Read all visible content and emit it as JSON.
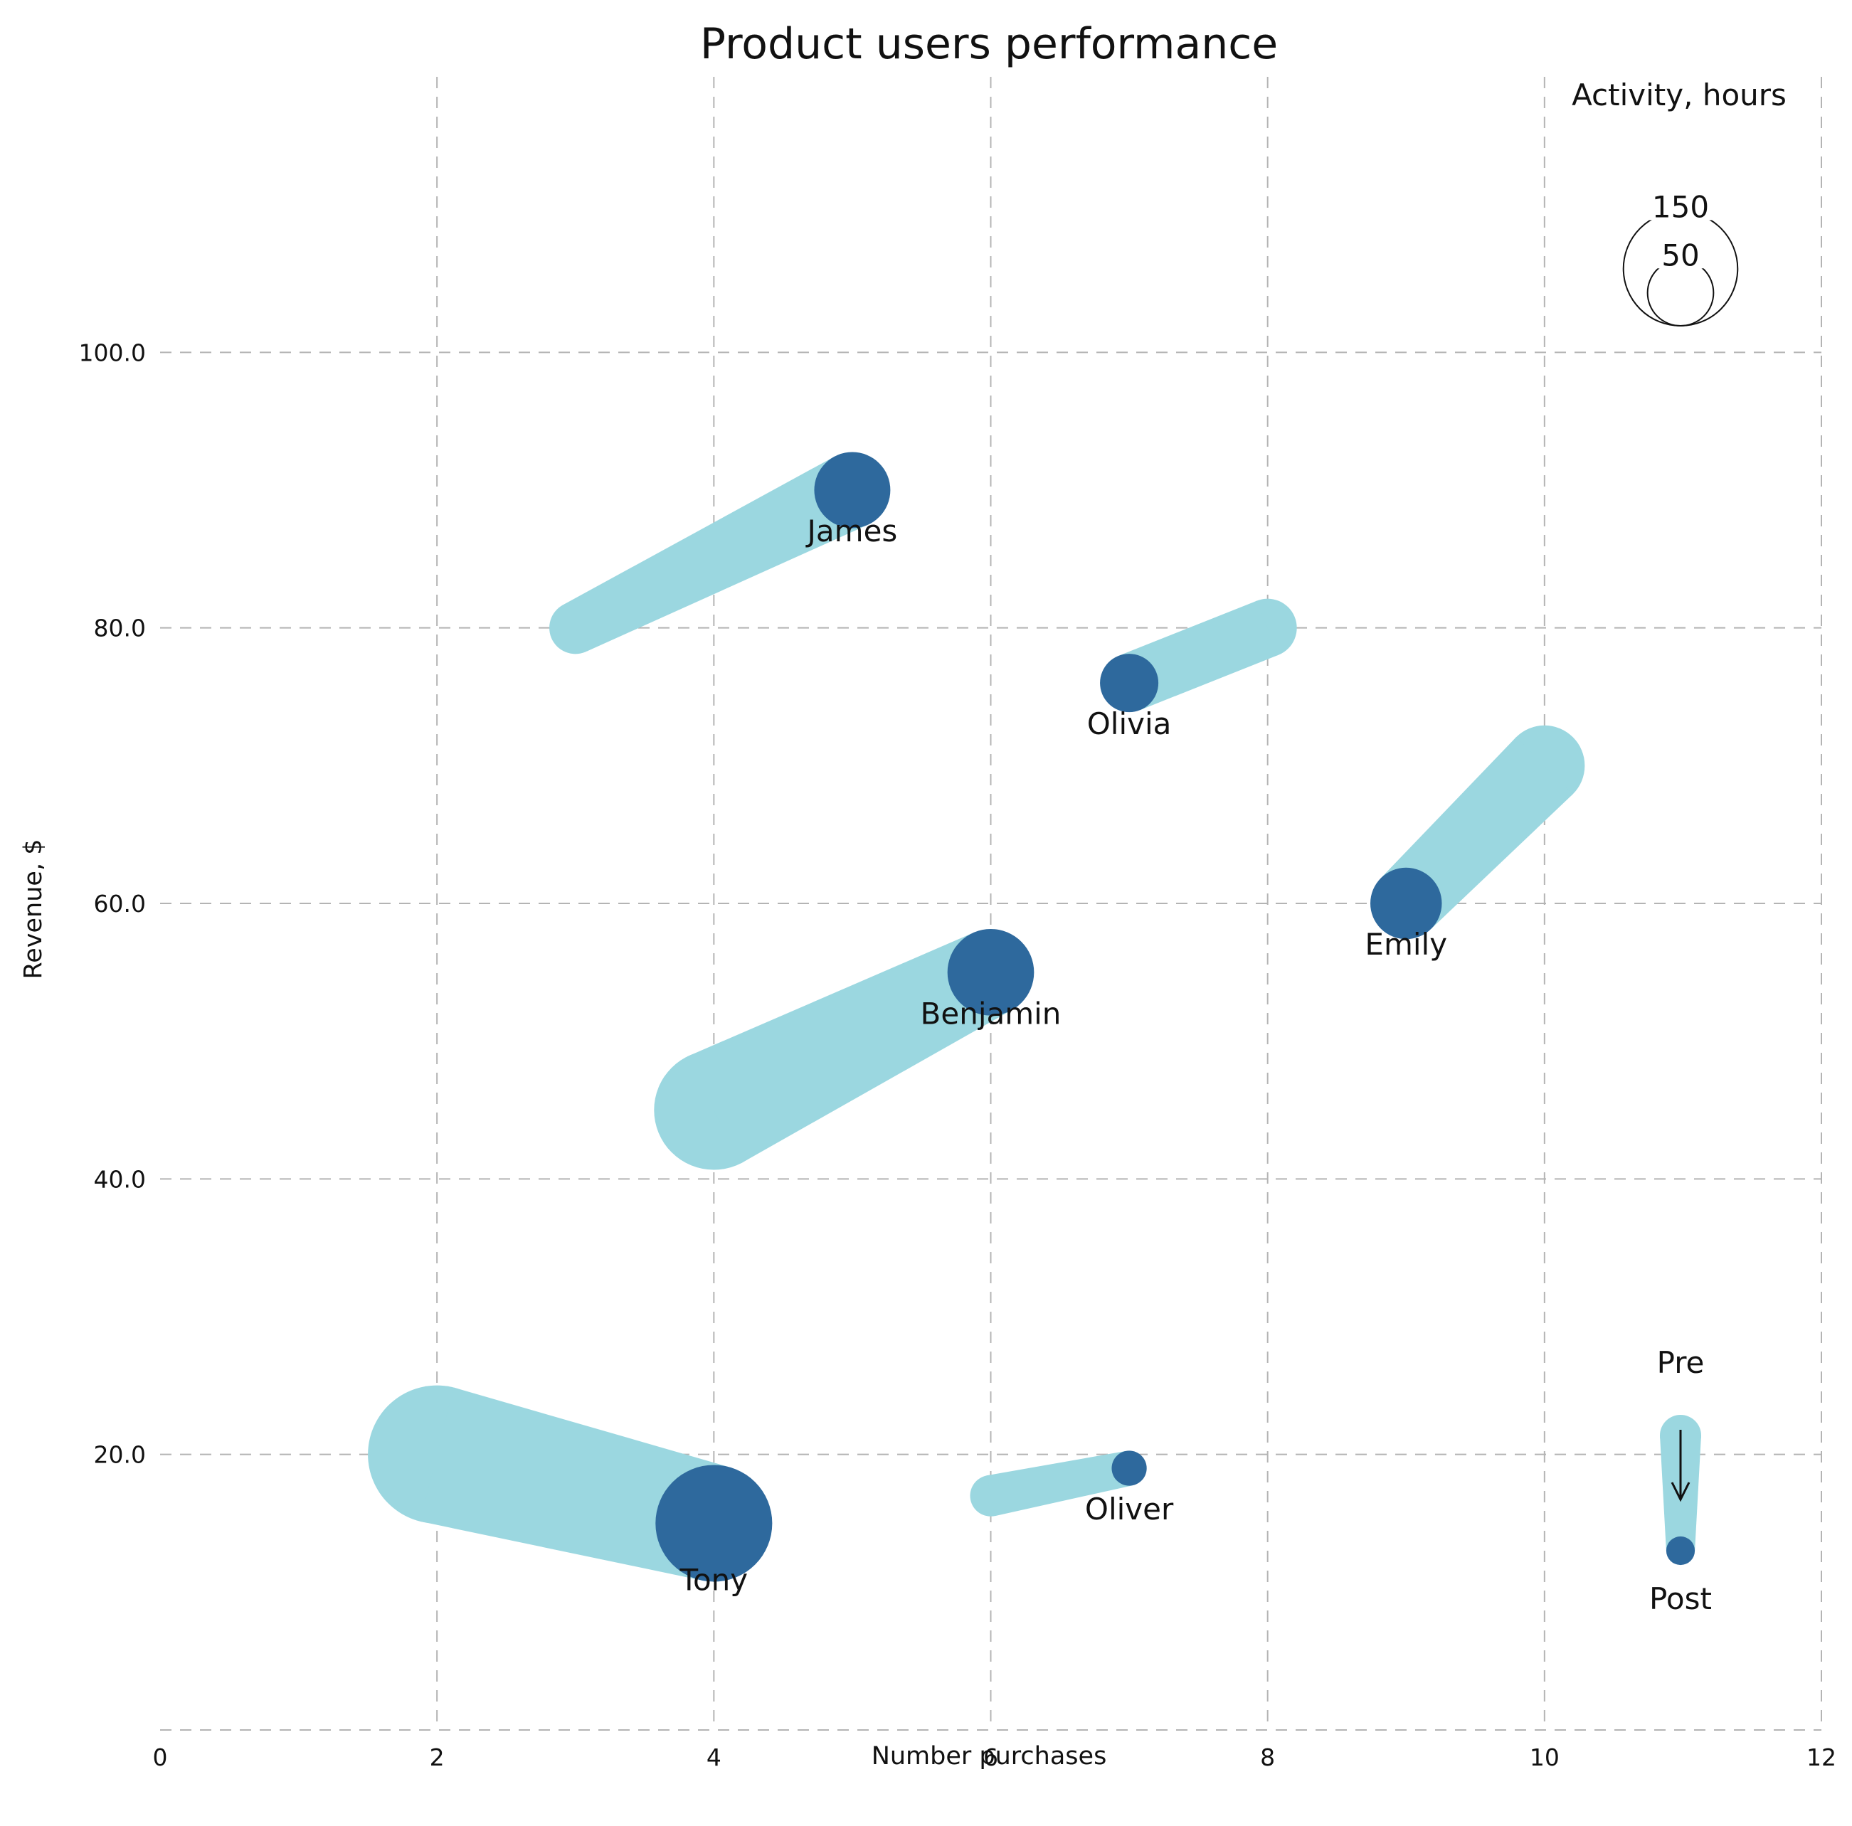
{
  "chart_data": {
    "type": "scatter",
    "title": "Product users performance",
    "xlabel": "Number purchases",
    "ylabel": "Revenue, $",
    "xlim": [
      0,
      12
    ],
    "ylim": [
      0,
      120
    ],
    "x_ticks": [
      "0",
      "2",
      "4",
      "6",
      "8",
      "10",
      "12"
    ],
    "y_ticks": [
      "20.0",
      "40.0",
      "60.0",
      "80.0",
      "100.0"
    ],
    "grid": true,
    "colors": {
      "pre": "#9bd7e0",
      "post": "#2e699d"
    },
    "size_legend": {
      "title": "Activity, hours",
      "values": [
        150,
        50
      ],
      "labels": [
        "150",
        "50"
      ]
    },
    "direction_legend": {
      "pre_label": "Pre",
      "post_label": "Post",
      "pre_activity": 25,
      "post_activity": 12,
      "position": "bottom-right"
    },
    "users": [
      {
        "name": "James",
        "pre": {
          "purchases": 3,
          "revenue": 80,
          "activity": 40
        },
        "post": {
          "purchases": 5,
          "revenue": 90,
          "activity": 85
        }
      },
      {
        "name": "Olivia",
        "pre": {
          "purchases": 8,
          "revenue": 80,
          "activity": 50
        },
        "post": {
          "purchases": 7,
          "revenue": 76,
          "activity": 50
        }
      },
      {
        "name": "Emily",
        "pre": {
          "purchases": 10,
          "revenue": 70,
          "activity": 95
        },
        "post": {
          "purchases": 9,
          "revenue": 60,
          "activity": 75
        }
      },
      {
        "name": "Benjamin",
        "pre": {
          "purchases": 4,
          "revenue": 45,
          "activity": 210
        },
        "post": {
          "purchases": 6,
          "revenue": 55,
          "activity": 110
        }
      },
      {
        "name": "Tony",
        "pre": {
          "purchases": 2,
          "revenue": 20,
          "activity": 280
        },
        "post": {
          "purchases": 4,
          "revenue": 15,
          "activity": 200
        }
      },
      {
        "name": "Oliver",
        "pre": {
          "purchases": 6,
          "revenue": 17,
          "activity": 25
        },
        "post": {
          "purchases": 7,
          "revenue": 19,
          "activity": 18
        }
      }
    ]
  }
}
